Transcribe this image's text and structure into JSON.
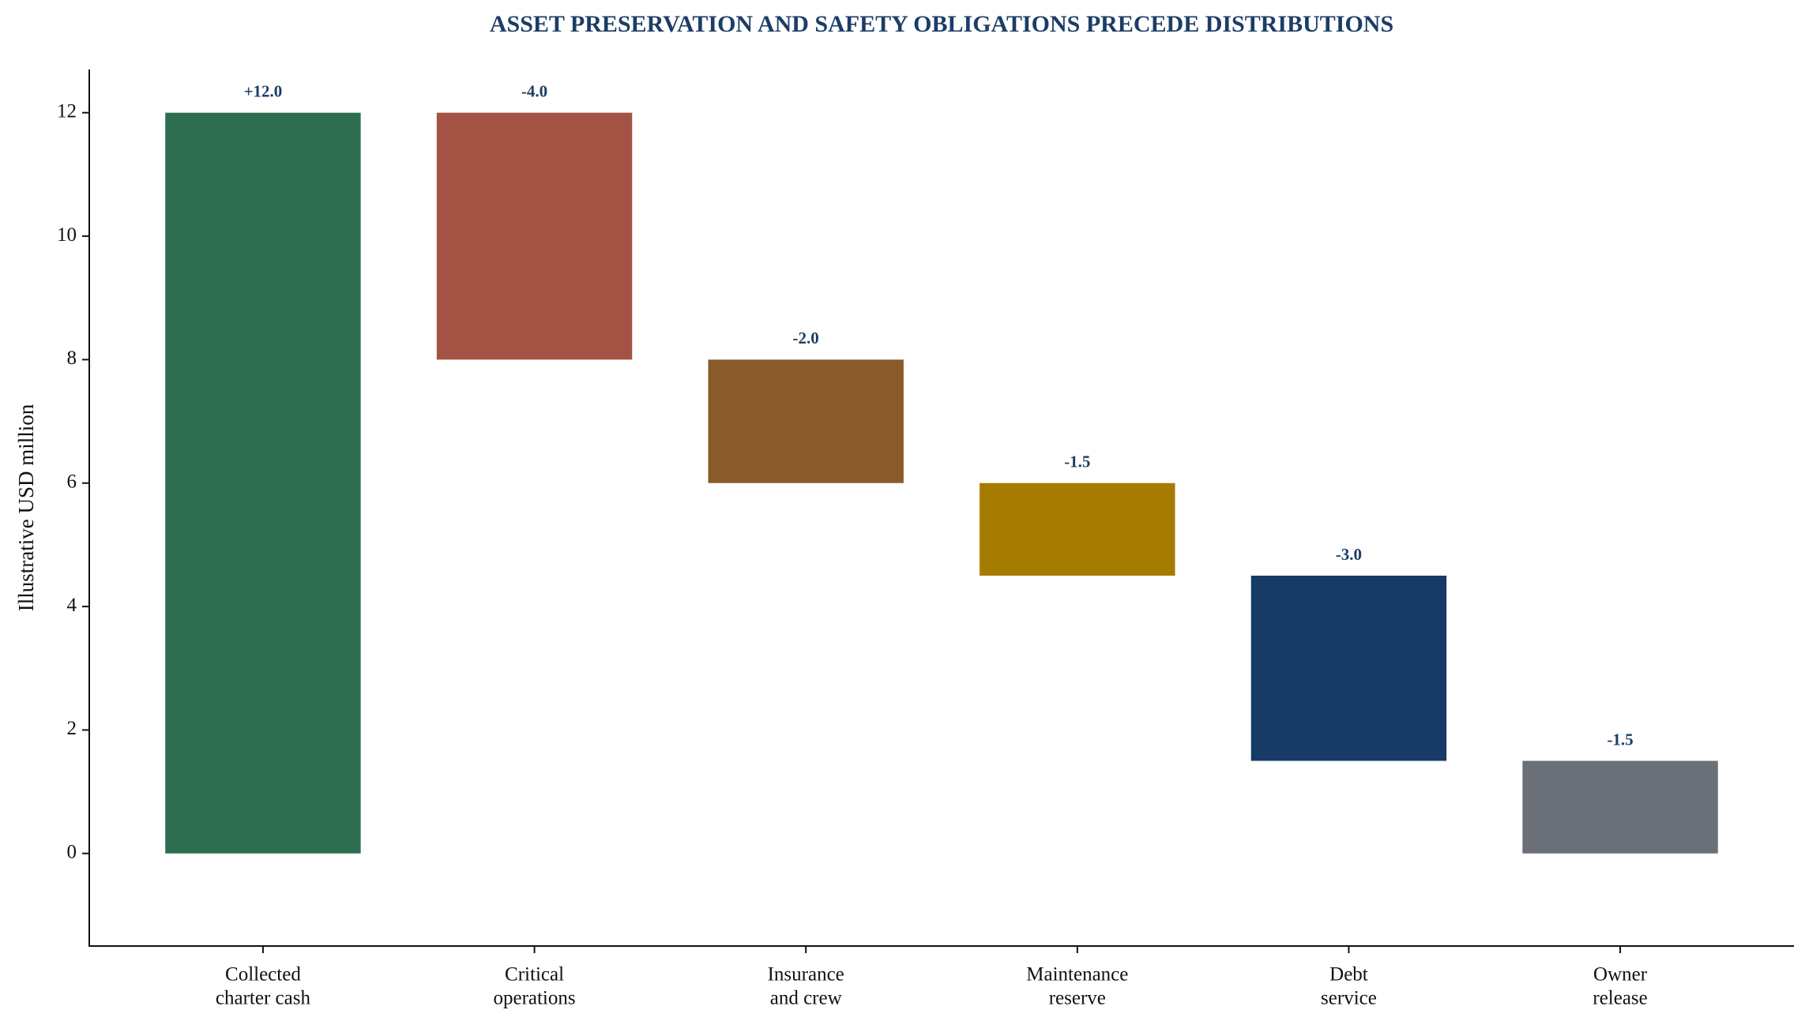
{
  "chart_data": {
    "type": "waterfall",
    "title": "ASSET PRESERVATION AND SAFETY OBLIGATIONS PRECEDE DISTRIBUTIONS",
    "y_label": "Illustrative USD million",
    "categories": [
      [
        "Collected",
        "charter cash"
      ],
      [
        "Critical",
        "operations"
      ],
      [
        "Insurance",
        "and crew"
      ],
      [
        "Maintenance",
        "reserve"
      ],
      [
        "Debt",
        "service"
      ],
      [
        "Owner",
        "release"
      ]
    ],
    "values": [
      12,
      -4,
      -2,
      -1.5,
      -3,
      -1.5
    ],
    "value_labels": [
      "+12.0",
      "-4.0",
      "-2.0",
      "-1.5",
      "-3.0",
      "-1.5"
    ],
    "colors": [
      "#2e6e50",
      "#a35244",
      "#8a5a2b",
      "#a67c00",
      "#173a66",
      "#6b7078"
    ],
    "ylim": [
      -1.5,
      12.7
    ],
    "yticks": [
      0,
      2,
      4,
      6,
      8,
      10,
      12
    ],
    "grid": false
  }
}
